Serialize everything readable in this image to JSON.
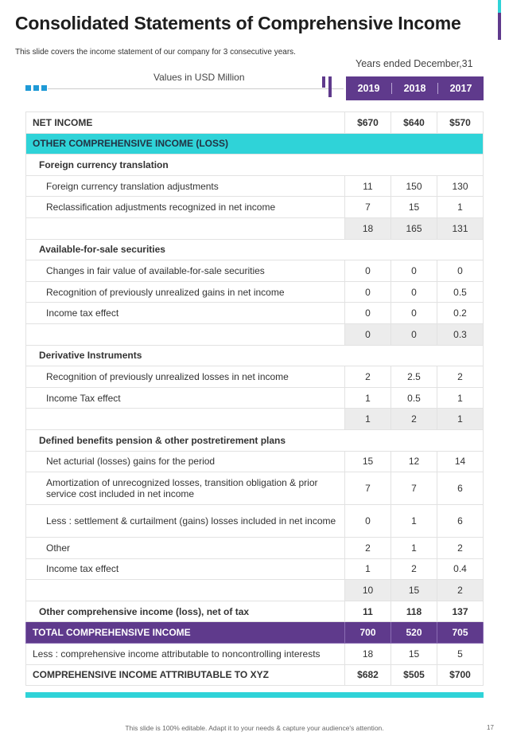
{
  "title": "Consolidated Statements of Comprehensive Income",
  "subtitle": "This slide covers the income statement of our company for 3 consecutive years.",
  "years_caption": "Years ended December,31",
  "units": "Values in USD Million",
  "years": [
    "2019",
    "2018",
    "2017"
  ],
  "rows": [
    {
      "type": "bold",
      "label": "NET INCOME",
      "values": [
        "$670",
        "$640",
        "$570"
      ]
    },
    {
      "type": "teal",
      "label": "OTHER COMPREHENSIVE INCOME (LOSS)"
    },
    {
      "type": "section",
      "label": "Foreign currency translation"
    },
    {
      "type": "item",
      "label": "Foreign currency translation adjustments",
      "values": [
        "11",
        "150",
        "130"
      ]
    },
    {
      "type": "item",
      "label": "Reclassification adjustments recognized in net income",
      "values": [
        "7",
        "15",
        "1"
      ]
    },
    {
      "type": "subtotal",
      "label": "",
      "values": [
        "18",
        "165",
        "131"
      ]
    },
    {
      "type": "section",
      "label": "Available-for-sale securities"
    },
    {
      "type": "item",
      "label": "Changes in fair value of available-for-sale securities",
      "values": [
        "0",
        "0",
        "0"
      ]
    },
    {
      "type": "item",
      "label": "Recognition of previously unrealized gains in net income",
      "values": [
        "0",
        "0",
        "0.5"
      ]
    },
    {
      "type": "item",
      "label": "Income tax effect",
      "values": [
        "0",
        "0",
        "0.2"
      ]
    },
    {
      "type": "subtotal",
      "label": "",
      "values": [
        "0",
        "0",
        "0.3"
      ]
    },
    {
      "type": "section",
      "label": "Derivative Instruments"
    },
    {
      "type": "item",
      "label": "Recognition of previously unrealized losses in net income",
      "values": [
        "2",
        "2.5",
        "2"
      ]
    },
    {
      "type": "item",
      "label": "Income Tax effect",
      "values": [
        "1",
        "0.5",
        "1"
      ]
    },
    {
      "type": "subtotal",
      "label": "",
      "values": [
        "1",
        "2",
        "1"
      ]
    },
    {
      "type": "section",
      "label": "Defined benefits pension & other postretirement plans"
    },
    {
      "type": "item",
      "label": "Net acturial (losses) gains for the period",
      "values": [
        "15",
        "12",
        "14"
      ]
    },
    {
      "type": "tall",
      "label": "Amortization of unrecognized losses, transition obligation & prior service cost included in net income",
      "values": [
        "7",
        "7",
        "6"
      ]
    },
    {
      "type": "tall",
      "label": "Less : settlement & curtailment (gains) losses included in net income",
      "values": [
        "0",
        "1",
        "6"
      ]
    },
    {
      "type": "item",
      "label": "Other",
      "values": [
        "2",
        "1",
        "2"
      ]
    },
    {
      "type": "item",
      "label": "Income tax effect",
      "values": [
        "1",
        "2",
        "0.4"
      ]
    },
    {
      "type": "subtotal",
      "label": "",
      "values": [
        "10",
        "15",
        "2"
      ]
    },
    {
      "type": "sectionv",
      "label": "Other comprehensive income (loss), net of tax",
      "values": [
        "11",
        "118",
        "137"
      ]
    },
    {
      "type": "purple",
      "label": "TOTAL  COMPREHENSIVE INCOME",
      "values": [
        "700",
        "520",
        "705"
      ]
    },
    {
      "type": "plain",
      "label": "Less : comprehensive income attributable to noncontrolling interests",
      "values": [
        "18",
        "15",
        "5"
      ]
    },
    {
      "type": "bold",
      "label": "COMPREHENSIVE INCOME ATTRIBUTABLE   TO XYZ",
      "values": [
        "$682",
        "$505",
        "$700"
      ]
    }
  ],
  "footer": "This slide is 100% editable.  Adapt it to your needs & capture your audience's attention.",
  "page_number": "17",
  "colors": {
    "purple": "#5f3a8c",
    "teal": "#2fd3d8",
    "blue": "#1f9ad6"
  }
}
